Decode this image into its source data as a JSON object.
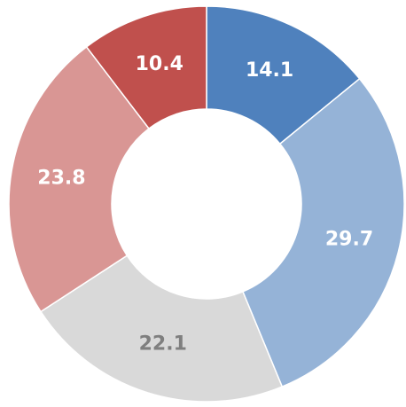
{
  "chart_data": {
    "type": "donut",
    "values": [
      14.1,
      29.7,
      22.1,
      23.8,
      10.4
    ],
    "colors": [
      "#4f81bd",
      "#95b3d7",
      "#d9d9d9",
      "#d99694",
      "#c0504d"
    ],
    "label_colors": [
      "#ffffff",
      "#ffffff",
      "#7f7f7f",
      "#ffffff",
      "#ffffff"
    ]
  }
}
